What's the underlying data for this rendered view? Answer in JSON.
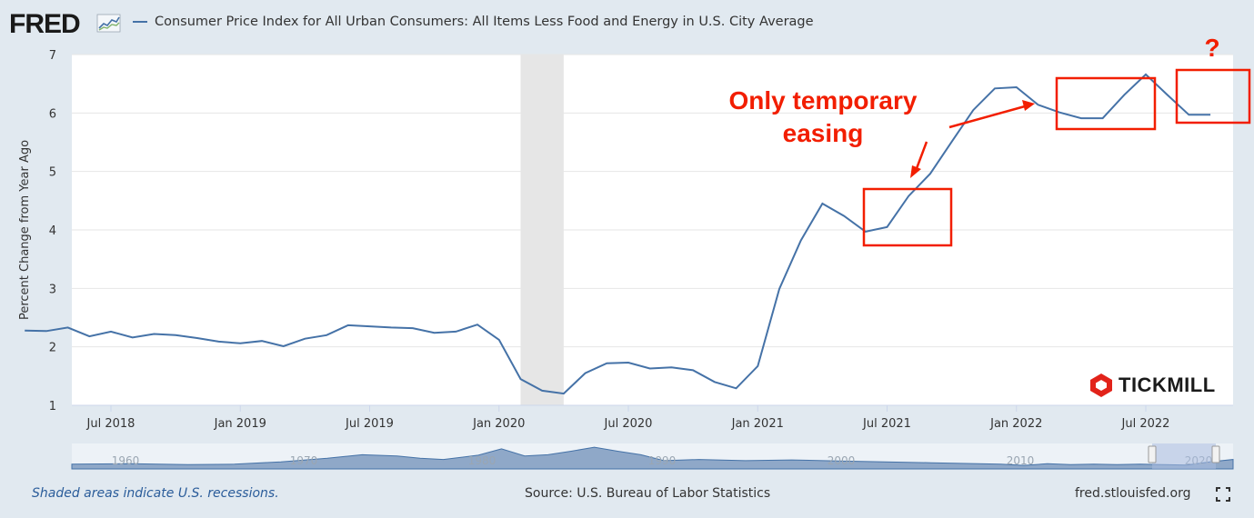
{
  "header": {
    "logo_text": "FRED",
    "series_title": "Consumer Price Index for All Urban Consumers: All Items Less Food and Energy in U.S. City Average"
  },
  "footer": {
    "recession_note": "Shaded areas indicate U.S. recessions.",
    "source": "Source: U.S. Bureau of Labor Statistics",
    "site": "fred.stlouisfed.org"
  },
  "watermark": {
    "text": "TICKMILL"
  },
  "colors": {
    "series": "#4572a7",
    "annotation": "#f21e00",
    "recession": "#e6e6e6",
    "navigator_fill": "#8fa8c8"
  },
  "icons": [
    "fred-chart-icon",
    "fullscreen-icon",
    "tickmill-logo-icon"
  ],
  "annotations": {
    "main_line1": "Only temporary",
    "main_line2": "easing",
    "question": "?"
  },
  "chart_data": {
    "type": "line",
    "title": "Consumer Price Index for All Urban Consumers: All Items Less Food and Energy in U.S. City Average",
    "xlabel": "",
    "ylabel": "Percent Change from Year Ago",
    "ylim": [
      1,
      7
    ],
    "yticks": [
      1,
      2,
      3,
      4,
      5,
      6,
      7
    ],
    "xticks": [
      "Jul 2018",
      "Jan 2019",
      "Jul 2019",
      "Jan 2020",
      "Jul 2020",
      "Jan 2021",
      "Jul 2021",
      "Jan 2022",
      "Jul 2022"
    ],
    "grid": true,
    "recession": {
      "start": "2020-02",
      "end": "2020-04"
    },
    "series": [
      {
        "name": "",
        "x": [
          "2018-03",
          "2018-04",
          "2018-05",
          "2018-06",
          "2018-07",
          "2018-08",
          "2018-09",
          "2018-10",
          "2018-11",
          "2018-12",
          "2019-01",
          "2019-02",
          "2019-03",
          "2019-04",
          "2019-05",
          "2019-06",
          "2019-07",
          "2019-08",
          "2019-09",
          "2019-10",
          "2019-11",
          "2019-12",
          "2020-01",
          "2020-02",
          "2020-03",
          "2020-04",
          "2020-05",
          "2020-06",
          "2020-07",
          "2020-08",
          "2020-09",
          "2020-10",
          "2020-11",
          "2020-12",
          "2021-01",
          "2021-02",
          "2021-03",
          "2021-04",
          "2021-05",
          "2021-06",
          "2021-07",
          "2021-08",
          "2021-09",
          "2021-10",
          "2021-11",
          "2021-12",
          "2022-01",
          "2022-02",
          "2022-03",
          "2022-04",
          "2022-05",
          "2022-06",
          "2022-07",
          "2022-08",
          "2022-09",
          "2022-10"
        ],
        "values": [
          2.28,
          2.27,
          2.33,
          2.18,
          2.26,
          2.16,
          2.22,
          2.2,
          2.15,
          2.09,
          2.06,
          2.1,
          2.01,
          2.14,
          2.2,
          2.37,
          2.35,
          2.33,
          2.32,
          2.24,
          2.26,
          2.38,
          2.12,
          1.45,
          1.25,
          1.2,
          1.55,
          1.72,
          1.73,
          1.63,
          1.65,
          1.6,
          1.4,
          1.29,
          1.67,
          2.99,
          3.82,
          4.45,
          4.24,
          3.97,
          4.05,
          4.58,
          4.96,
          5.51,
          6.05,
          6.42,
          6.44,
          6.14,
          6.01,
          5.91,
          5.91,
          6.31,
          6.66,
          6.31,
          5.97,
          5.97
        ]
      }
    ],
    "navigator": {
      "labels": [
        "1960",
        "1970",
        "1980",
        "1990",
        "2000",
        "2010",
        "2020"
      ]
    },
    "watermark": "TICKMILL"
  }
}
